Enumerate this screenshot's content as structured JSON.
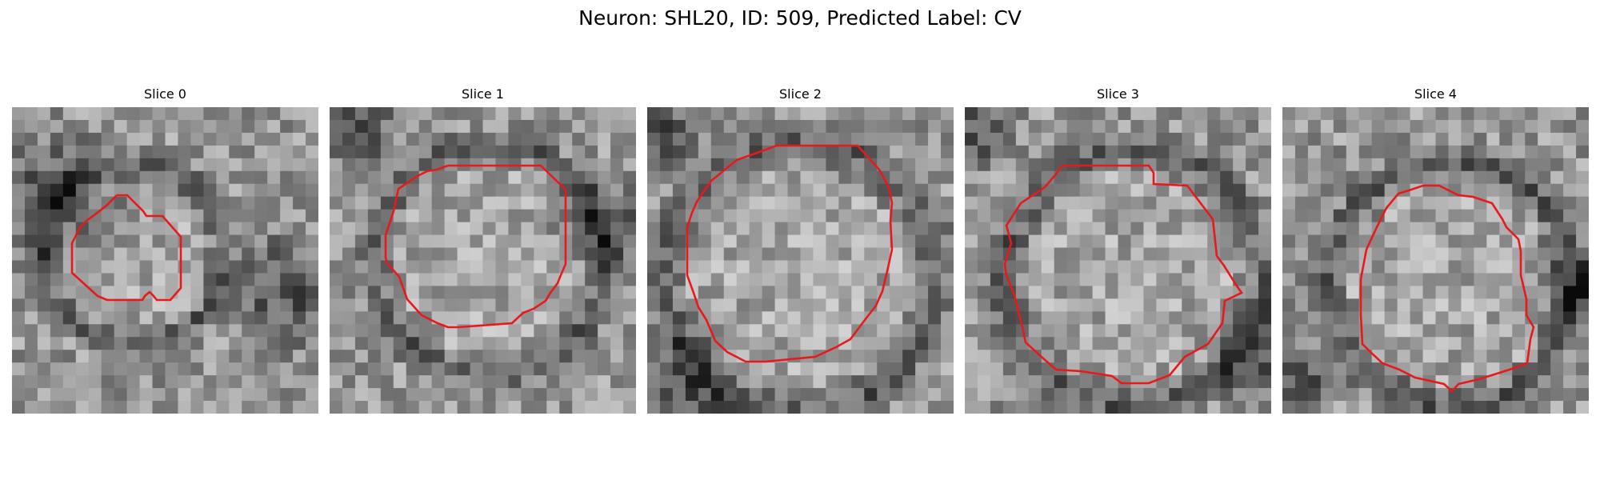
{
  "figure": {
    "title": "Neuron: SHL20, ID: 509, Predicted Label: CV"
  },
  "slices": [
    {
      "label": "Slice 0"
    },
    {
      "label": "Slice 1"
    },
    {
      "label": "Slice 2"
    },
    {
      "label": "Slice 3"
    },
    {
      "label": "Slice 4"
    }
  ],
  "colors": {
    "contour": "#e8191b",
    "background": "#ffffff"
  }
}
